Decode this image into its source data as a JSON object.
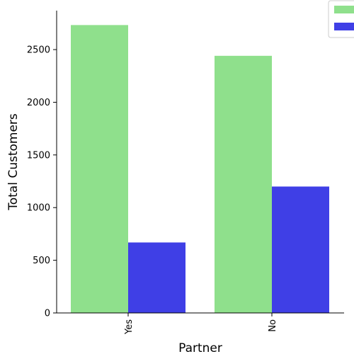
{
  "chart_data": {
    "type": "bar",
    "xlabel": "Partner",
    "ylabel": "Total Customers",
    "categories": [
      "Yes",
      "No"
    ],
    "series": [
      {
        "values": [
          2733,
          2441
        ],
        "color": "#8fe08c"
      },
      {
        "values": [
          669,
          1200
        ],
        "color": "#3f3fe6"
      }
    ],
    "ylim": [
      0,
      2870
    ],
    "yticks": [
      0,
      500,
      1000,
      1500,
      2000,
      2500
    ],
    "grid": false,
    "legend_position": "top-right"
  }
}
